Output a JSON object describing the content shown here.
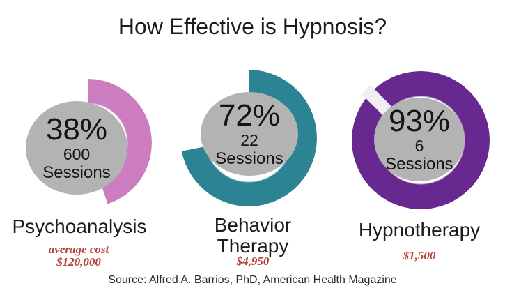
{
  "page": {
    "background": "#ffffff"
  },
  "title": "How Effective is Hypnosis?",
  "colors": {
    "circle_fill": "#b3b3b3",
    "cost_text": "#b5413d",
    "title_text": "#1c1c1c",
    "psychoanalysis_arc": "#cb7dc0",
    "behavior_therapy_arc": "#2b8394",
    "hypnotherapy_arc": "#67298f",
    "gap_slash": "#f0eef2"
  },
  "chart_data": {
    "type": "pie",
    "subtype": "donut-progress",
    "title": "How Effective is Hypnosis?",
    "legend": false,
    "series": [
      {
        "name": "Psychoanalysis",
        "percent": 38,
        "percent_label": "38%",
        "sessions": "600",
        "sessions_word": "Sessions",
        "cost_prefix": "average cost",
        "cost": "$120,000",
        "color": "#cb7dc0",
        "visual_arc_deg": 162
      },
      {
        "name": "Behavior Therapy",
        "percent": 72,
        "percent_label": "72%",
        "sessions": "22",
        "sessions_word": "Sessions",
        "cost_prefix": "",
        "cost": "$4,950",
        "color": "#2b8394",
        "visual_arc_deg": 259
      },
      {
        "name": "Hypnotherapy",
        "percent": 93,
        "percent_label": "93%",
        "sessions": "6",
        "sessions_word": "Sessions",
        "cost_prefix": "",
        "cost": "$1,500",
        "color": "#67298f",
        "visual_arc_deg": 360
      }
    ],
    "source": "Source: Alfred A. Barrios, PhD, American Health Magazine"
  }
}
